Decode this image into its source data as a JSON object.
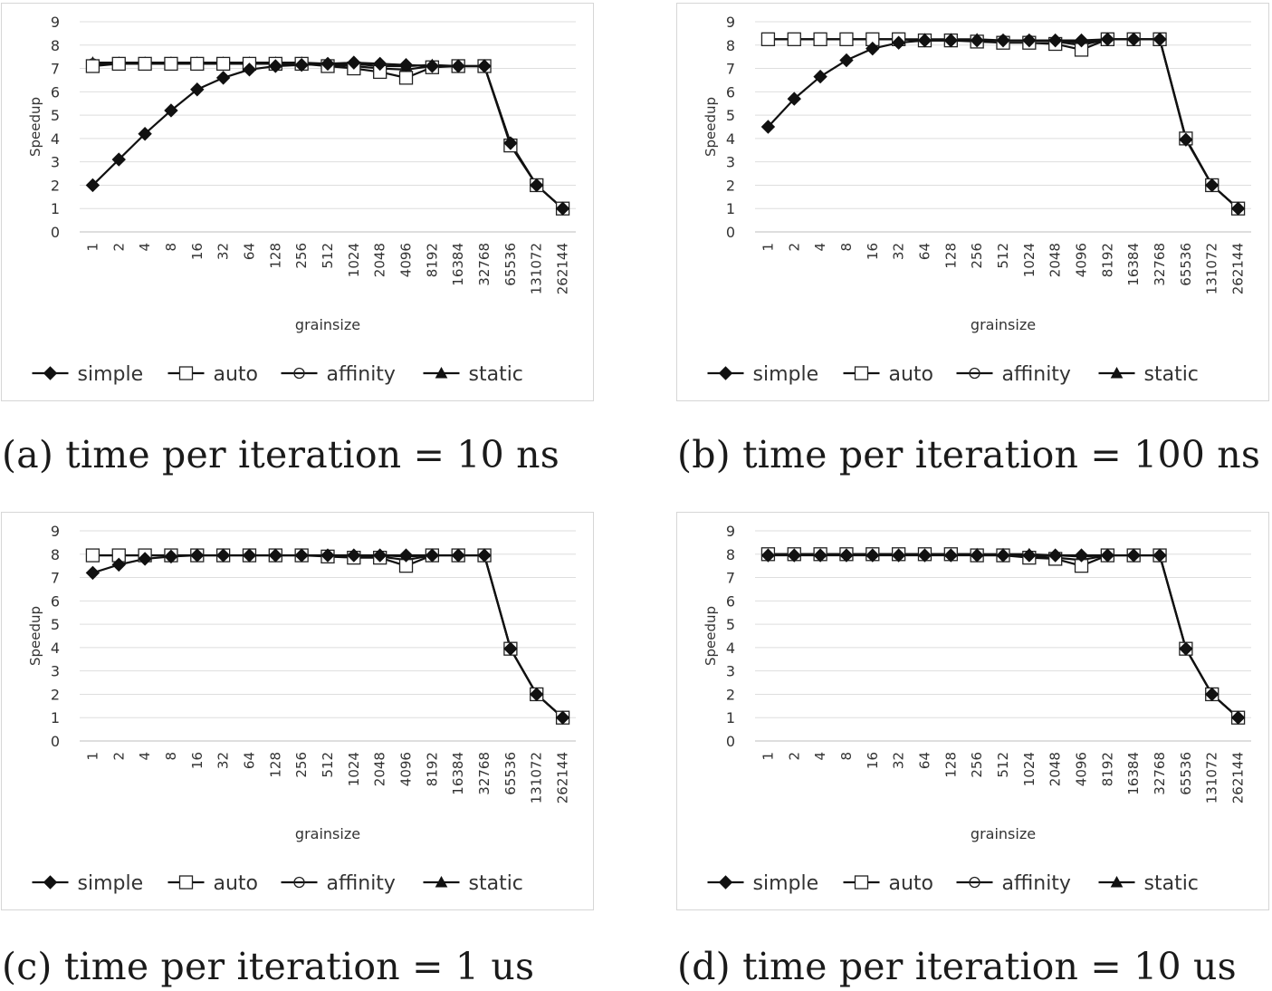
{
  "chart_data": [
    {
      "type": "line",
      "caption": "(a) time per iteration = 10 ns",
      "xlabel": "grainsize",
      "ylabel": "Speedup",
      "ylim": [
        0,
        9
      ],
      "yticks": [
        "0",
        "1",
        "2",
        "3",
        "4",
        "5",
        "6",
        "7",
        "8",
        "9"
      ],
      "categories": [
        "1",
        "2",
        "4",
        "8",
        "16",
        "32",
        "64",
        "128",
        "256",
        "512",
        "1024",
        "2048",
        "4096",
        "8192",
        "16384",
        "32768",
        "65536",
        "131072",
        "262144"
      ],
      "grid": "horizontal",
      "legend_position": "bottom",
      "series": [
        {
          "name": "simple",
          "marker": "filled-diamond",
          "values": [
            2.0,
            3.1,
            4.2,
            5.2,
            6.1,
            6.6,
            6.95,
            7.1,
            7.15,
            7.2,
            7.25,
            7.2,
            7.15,
            7.1,
            7.1,
            7.1,
            3.8,
            2.0,
            1.0
          ]
        },
        {
          "name": "auto",
          "marker": "open-square",
          "values": [
            7.1,
            7.2,
            7.2,
            7.2,
            7.2,
            7.2,
            7.2,
            7.2,
            7.2,
            7.1,
            7.0,
            6.85,
            6.6,
            7.05,
            7.1,
            7.1,
            3.7,
            2.0,
            1.0
          ]
        },
        {
          "name": "affinity",
          "marker": "open-circle",
          "values": [
            7.2,
            7.2,
            7.2,
            7.2,
            7.2,
            7.2,
            7.2,
            7.2,
            7.2,
            7.15,
            7.1,
            7.0,
            6.95,
            7.1,
            7.1,
            7.1,
            3.8,
            2.0,
            1.0
          ]
        },
        {
          "name": "static",
          "marker": "filled-triangle",
          "values": [
            7.25,
            7.25,
            7.25,
            7.25,
            7.25,
            7.25,
            7.25,
            7.25,
            7.25,
            7.2,
            7.2,
            7.1,
            7.1,
            7.15,
            7.1,
            7.1,
            3.8,
            2.0,
            1.0
          ]
        }
      ]
    },
    {
      "type": "line",
      "caption": "(b) time per iteration = 100 ns",
      "xlabel": "grainsize",
      "ylabel": "Speedup",
      "ylim": [
        0,
        9
      ],
      "yticks": [
        "0",
        "1",
        "2",
        "3",
        "4",
        "5",
        "6",
        "7",
        "8",
        "9"
      ],
      "categories": [
        "1",
        "2",
        "4",
        "8",
        "16",
        "32",
        "64",
        "128",
        "256",
        "512",
        "1024",
        "2048",
        "4096",
        "8192",
        "16384",
        "32768",
        "65536",
        "131072",
        "262144"
      ],
      "grid": "horizontal",
      "legend_position": "bottom",
      "series": [
        {
          "name": "simple",
          "marker": "filled-diamond",
          "values": [
            4.5,
            5.7,
            6.65,
            7.35,
            7.85,
            8.1,
            8.2,
            8.2,
            8.2,
            8.2,
            8.2,
            8.2,
            8.2,
            8.25,
            8.25,
            8.25,
            3.95,
            2.0,
            1.0
          ]
        },
        {
          "name": "auto",
          "marker": "open-square",
          "values": [
            8.25,
            8.25,
            8.25,
            8.25,
            8.25,
            8.25,
            8.2,
            8.2,
            8.15,
            8.1,
            8.1,
            8.05,
            7.8,
            8.25,
            8.25,
            8.25,
            4.0,
            2.0,
            1.0
          ]
        },
        {
          "name": "affinity",
          "marker": "open-circle",
          "values": [
            8.25,
            8.25,
            8.25,
            8.25,
            8.25,
            8.25,
            8.2,
            8.2,
            8.2,
            8.2,
            8.2,
            8.15,
            8.0,
            8.25,
            8.25,
            8.25,
            4.0,
            2.0,
            1.0
          ]
        },
        {
          "name": "static",
          "marker": "filled-triangle",
          "values": [
            8.25,
            8.25,
            8.25,
            8.25,
            8.25,
            8.25,
            8.25,
            8.25,
            8.25,
            8.2,
            8.2,
            8.2,
            8.1,
            8.25,
            8.25,
            8.25,
            4.0,
            2.0,
            1.0
          ]
        }
      ]
    },
    {
      "type": "line",
      "caption": "(c) time per iteration = 1 us",
      "xlabel": "grainsize",
      "ylabel": "Speedup",
      "ylim": [
        0,
        9
      ],
      "yticks": [
        "0",
        "1",
        "2",
        "3",
        "4",
        "5",
        "6",
        "7",
        "8",
        "9"
      ],
      "categories": [
        "1",
        "2",
        "4",
        "8",
        "16",
        "32",
        "64",
        "128",
        "256",
        "512",
        "1024",
        "2048",
        "4096",
        "8192",
        "16384",
        "32768",
        "65536",
        "131072",
        "262144"
      ],
      "grid": "horizontal",
      "legend_position": "bottom",
      "series": [
        {
          "name": "simple",
          "marker": "filled-diamond",
          "values": [
            7.2,
            7.55,
            7.8,
            7.9,
            7.95,
            7.95,
            7.95,
            7.95,
            7.95,
            7.95,
            7.95,
            7.95,
            7.95,
            7.95,
            7.95,
            7.95,
            3.95,
            2.0,
            1.0
          ]
        },
        {
          "name": "auto",
          "marker": "open-square",
          "values": [
            7.95,
            7.95,
            7.95,
            7.95,
            7.95,
            7.95,
            7.95,
            7.95,
            7.95,
            7.9,
            7.85,
            7.85,
            7.5,
            7.95,
            7.95,
            7.95,
            3.95,
            2.0,
            1.0
          ]
        },
        {
          "name": "affinity",
          "marker": "open-circle",
          "values": [
            7.95,
            7.95,
            7.95,
            7.95,
            7.95,
            7.95,
            7.95,
            7.95,
            7.95,
            7.95,
            7.9,
            7.9,
            7.75,
            7.95,
            7.95,
            7.95,
            3.95,
            2.0,
            1.0
          ]
        },
        {
          "name": "static",
          "marker": "filled-triangle",
          "values": [
            7.95,
            7.95,
            7.95,
            7.95,
            7.95,
            7.95,
            7.95,
            7.95,
            7.95,
            7.95,
            7.95,
            7.95,
            7.9,
            7.95,
            7.95,
            7.95,
            3.95,
            2.0,
            1.0
          ]
        }
      ]
    },
    {
      "type": "line",
      "caption": "(d) time per iteration = 10 us",
      "xlabel": "grainsize",
      "ylabel": "Speedup",
      "ylim": [
        0,
        9
      ],
      "yticks": [
        "0",
        "1",
        "2",
        "3",
        "4",
        "5",
        "6",
        "7",
        "8",
        "9"
      ],
      "categories": [
        "1",
        "2",
        "4",
        "8",
        "16",
        "32",
        "64",
        "128",
        "256",
        "512",
        "1024",
        "2048",
        "4096",
        "8192",
        "16384",
        "32768",
        "65536",
        "131072",
        "262144"
      ],
      "grid": "horizontal",
      "legend_position": "bottom",
      "series": [
        {
          "name": "simple",
          "marker": "filled-diamond",
          "values": [
            7.95,
            7.95,
            7.95,
            7.95,
            7.95,
            7.95,
            7.95,
            7.95,
            7.95,
            7.95,
            7.95,
            7.95,
            7.95,
            7.95,
            7.95,
            7.95,
            3.95,
            2.0,
            1.0
          ]
        },
        {
          "name": "auto",
          "marker": "open-square",
          "values": [
            8.0,
            8.0,
            8.0,
            8.0,
            8.0,
            8.0,
            8.0,
            8.0,
            7.95,
            7.95,
            7.85,
            7.8,
            7.5,
            7.95,
            7.95,
            7.95,
            3.95,
            2.0,
            1.0
          ]
        },
        {
          "name": "affinity",
          "marker": "open-circle",
          "values": [
            8.0,
            8.0,
            8.0,
            8.0,
            8.0,
            8.0,
            8.0,
            8.0,
            8.0,
            7.95,
            7.9,
            7.85,
            7.75,
            7.95,
            7.95,
            7.95,
            3.95,
            2.0,
            1.0
          ]
        },
        {
          "name": "static",
          "marker": "filled-triangle",
          "values": [
            8.0,
            8.0,
            8.0,
            8.0,
            8.0,
            8.0,
            8.0,
            8.0,
            8.0,
            8.0,
            8.0,
            7.95,
            7.9,
            7.95,
            7.95,
            7.95,
            3.95,
            2.0,
            1.0
          ]
        }
      ]
    }
  ]
}
